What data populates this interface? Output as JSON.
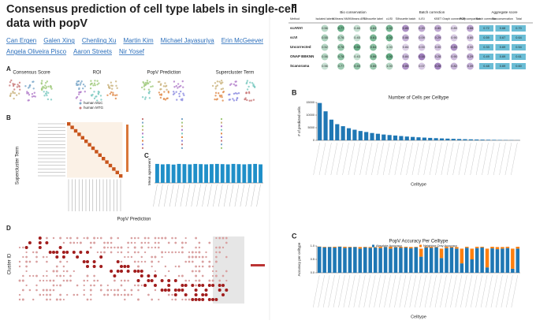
{
  "header": {
    "title_lines": [
      "Consensus prediction of cell type labels in single-cell",
      "data with popV"
    ],
    "authors": [
      "Can Ergen",
      "Galen Xing",
      "Chenling Xu",
      "Martin Kim",
      "Michael Jayasuriya",
      "Erin McGeever",
      "Angela Oliveira Pisco",
      "Aaron Streets",
      "Nir Yosef"
    ]
  },
  "left_figure": {
    "panel_a": {
      "label": "A",
      "umaps": [
        "Consensus Score",
        "ROI",
        "PopV Prediction",
        "Supercluster Term"
      ],
      "roi_legend": [
        "human M1C",
        "human MTG"
      ]
    },
    "panel_b": {
      "label": "B",
      "x_label": "PopV Prediction",
      "y_label": "Supercluster Term"
    },
    "panel_c": {
      "label": "C",
      "y_label": "Mean agreement",
      "color": "#1f8fc8",
      "ylim": [
        0,
        1
      ],
      "values": [
        0.86,
        0.84,
        0.85,
        0.83,
        0.86,
        0.85,
        0.84,
        0.86,
        0.85,
        0.84,
        0.85,
        0.86,
        0.85,
        0.84,
        0.86,
        0.85,
        0.84,
        0.85,
        0.86,
        0.84
      ]
    },
    "panel_d": {
      "label": "D",
      "y_label": "Cluster ID"
    }
  },
  "right_figure": {
    "table": {
      "label": "A",
      "groups": [
        "Bio conservation",
        "Batch correction",
        "Aggregate score"
      ],
      "columns": [
        "Method",
        "Isolated labels",
        "KMeans NMI",
        "KMeans ARI",
        "Silhouette label",
        "cLISI",
        "Silhouette batch",
        "iLISI",
        "KBET",
        "Graph connectivity",
        "PCR comparison",
        "Batch correction",
        "Bio conservation",
        "Total"
      ],
      "rows": [
        [
          "scANVI",
          "0.56",
          "0.77",
          "0.46",
          "0.63",
          "1.00",
          "0.85",
          "0.20",
          "0.80",
          "0.89",
          "0.88",
          "0.72",
          "0.68",
          "0.70"
        ],
        [
          "scVI",
          "0.55",
          "0.76",
          "0.45",
          "0.61",
          "1.00",
          "0.86",
          "0.09",
          "0.29",
          "0.90",
          "0.80",
          "0.59",
          "0.67",
          "0.64"
        ],
        [
          "Uncorrected",
          "0.52",
          "0.78",
          "0.50",
          "0.64",
          "1.00",
          "0.84",
          "0.00",
          "0.00",
          "0.80",
          "0.00",
          "0.33",
          "0.69",
          "0.54"
        ],
        [
          "ONAP BBKNN",
          "0.56",
          "0.78",
          "0.43",
          "0.66",
          "1.00",
          "0.84",
          "0.16",
          "0.28",
          "0.90",
          "0.29",
          "0.49",
          "0.69",
          "0.61"
        ],
        [
          "Scanorama",
          "0.56",
          "0.77",
          "0.45",
          "0.65",
          "1.00",
          "0.85",
          "0.07",
          "0.28",
          "0.82",
          "0.39",
          "0.48",
          "0.69",
          "0.60"
        ]
      ]
    },
    "cells_chart": {
      "type": "bar",
      "label": "B",
      "title": "Number of Cells per Celltype",
      "x_label": "Celltype",
      "y_label": "# of predicted cells",
      "color": "#1f77b4",
      "ylim": [
        0,
        15000
      ],
      "yticks": [
        0,
        5000,
        10000,
        15000
      ],
      "values": [
        14800,
        11500,
        8200,
        6400,
        5600,
        4800,
        4200,
        3700,
        3300,
        2900,
        2600,
        2300,
        2100,
        1900,
        1700,
        1500,
        1350,
        1200,
        1080,
        960,
        860,
        760,
        680,
        600,
        520,
        450,
        390,
        330,
        280,
        230,
        190,
        150,
        110,
        80,
        50
      ]
    },
    "accuracy_chart": {
      "type": "stacked_bar",
      "label": "C",
      "title": "PopV Accuracy Per Celltype",
      "x_label": "Celltype",
      "y_label": "Accuracy per celltype",
      "ylim": [
        0,
        1
      ],
      "yticks": [
        {
          "value": 0,
          "label": "0.0"
        },
        {
          "value": 0.5,
          "label": "0.5"
        },
        {
          "value": 1,
          "label": "1.0"
        }
      ],
      "series": [
        {
          "name": "Absolute Accuracy",
          "color": "#1f77b4",
          "values": [
            0.97,
            0.95,
            0.96,
            0.94,
            0.97,
            0.93,
            0.95,
            0.96,
            0.9,
            0.95,
            0.93,
            0.94,
            0.92,
            0.96,
            0.9,
            0.95,
            0.93,
            0.94,
            0.91,
            0.95,
            0.6,
            0.94,
            0.93,
            0.95,
            0.55,
            0.92,
            0.94,
            0.9,
            0.35,
            0.93,
            0.5,
            0.92,
            0.94,
            0.2,
            0.91,
            0.88,
            0.9,
            0.92,
            0.15,
            0.9
          ]
        },
        {
          "name": "Neighbor Only Accuracy",
          "color": "#ff7f0e",
          "values": [
            0.01,
            0.02,
            0.01,
            0.03,
            0.01,
            0.04,
            0.02,
            0.01,
            0.06,
            0.02,
            0.03,
            0.02,
            0.05,
            0.01,
            0.07,
            0.02,
            0.04,
            0.03,
            0.05,
            0.02,
            0.3,
            0.03,
            0.04,
            0.02,
            0.35,
            0.05,
            0.03,
            0.06,
            0.55,
            0.04,
            0.4,
            0.05,
            0.03,
            0.7,
            0.06,
            0.08,
            0.06,
            0.05,
            0.75,
            0.07
          ]
        }
      ]
    }
  }
}
